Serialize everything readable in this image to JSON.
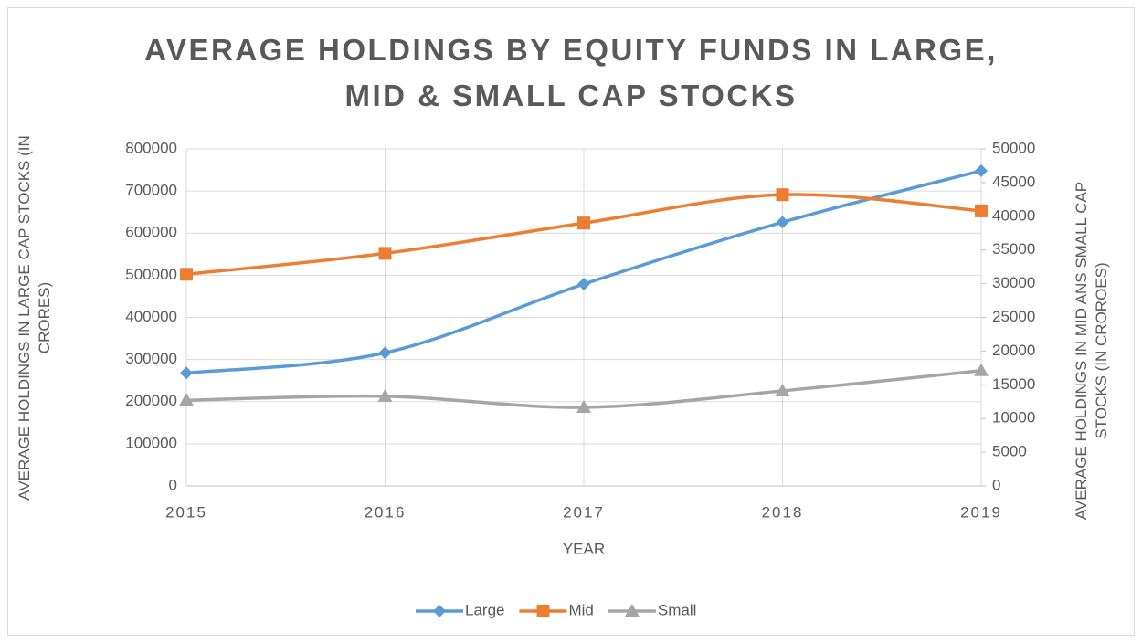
{
  "chart_data": {
    "type": "line",
    "title": "AVERAGE HOLDINGS BY EQUITY FUNDS IN LARGE, MID & SMALL CAP STOCKS",
    "x_label": "YEAR",
    "y_label": "AVERAGE HOLDINGS IN LARGE CAP STOCKS (IN CRORES)",
    "y2_label": "AVERAGE HOLDINGS IN MID ANS SMALL CAP STOCKS (IN CROROES)",
    "x": [
      2015,
      2016,
      2017,
      2018,
      2019
    ],
    "xlim": [
      2015,
      2019
    ],
    "xticks": [
      2015,
      2016,
      2017,
      2018,
      2019
    ],
    "ylim": [
      0,
      800000
    ],
    "yticks": [
      0,
      100000,
      200000,
      300000,
      400000,
      500000,
      600000,
      700000,
      800000
    ],
    "y2lim": [
      0,
      50000
    ],
    "y2ticks": [
      0,
      5000,
      10000,
      15000,
      20000,
      25000,
      30000,
      35000,
      40000,
      45000,
      50000
    ],
    "grid": true,
    "legend": "bottom",
    "series": [
      {
        "name": "Large",
        "color": "#5b9bd5",
        "marker": "diamond",
        "values": [
          268000,
          316000,
          479000,
          626000,
          748000
        ]
      },
      {
        "name": "Mid",
        "color": "#ed7d31",
        "marker": "square",
        "axis": "y2",
        "values": [
          31400,
          34500,
          39000,
          43200,
          40800
        ]
      },
      {
        "name": "Small",
        "color": "#a5a5a5",
        "marker": "triangle",
        "axis": "y2",
        "values": [
          12700,
          13300,
          11650,
          14100,
          17100
        ]
      }
    ]
  }
}
